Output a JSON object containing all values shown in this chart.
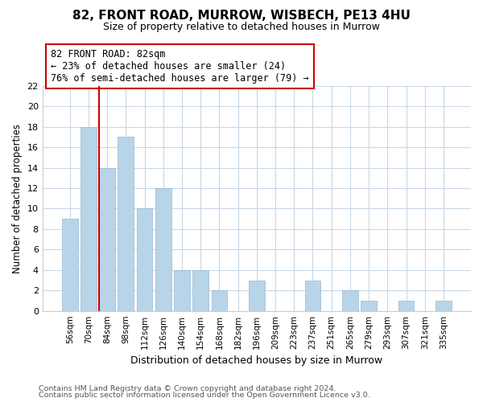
{
  "title": "82, FRONT ROAD, MURROW, WISBECH, PE13 4HU",
  "subtitle": "Size of property relative to detached houses in Murrow",
  "xlabel": "Distribution of detached houses by size in Murrow",
  "ylabel": "Number of detached properties",
  "bar_labels": [
    "56sqm",
    "70sqm",
    "84sqm",
    "98sqm",
    "112sqm",
    "126sqm",
    "140sqm",
    "154sqm",
    "168sqm",
    "182sqm",
    "196sqm",
    "209sqm",
    "223sqm",
    "237sqm",
    "251sqm",
    "265sqm",
    "279sqm",
    "293sqm",
    "307sqm",
    "321sqm",
    "335sqm"
  ],
  "bar_values": [
    9,
    18,
    14,
    17,
    10,
    12,
    4,
    4,
    2,
    0,
    3,
    0,
    0,
    3,
    0,
    2,
    1,
    0,
    1,
    0,
    1
  ],
  "bar_color": "#b8d4e8",
  "bar_edge_color": "#9ab8d0",
  "highlight_line_color": "#cc0000",
  "annotation_line1": "82 FRONT ROAD: 82sqm",
  "annotation_line2": "← 23% of detached houses are smaller (24)",
  "annotation_line3": "76% of semi-detached houses are larger (79) →",
  "annotation_box_color": "#ffffff",
  "annotation_box_edge": "#cc0000",
  "ylim": [
    0,
    22
  ],
  "yticks": [
    0,
    2,
    4,
    6,
    8,
    10,
    12,
    14,
    16,
    18,
    20,
    22
  ],
  "footer1": "Contains HM Land Registry data © Crown copyright and database right 2024.",
  "footer2": "Contains public sector information licensed under the Open Government Licence v3.0.",
  "background_color": "#ffffff",
  "plot_background": "#ffffff",
  "grid_color": "#c8d8e8",
  "title_fontsize": 11,
  "subtitle_fontsize": 9
}
